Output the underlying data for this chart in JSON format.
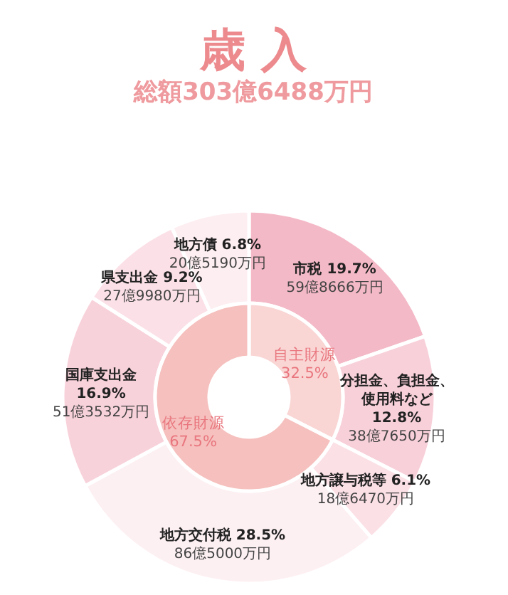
{
  "chart_data": [
    {
      "type": "donut",
      "title": "歳 入",
      "subtitle": "総額303億6488万円",
      "categories": [
        "市税",
        "分担金、負担金、使用料など",
        "地方譲与税等",
        "地方交付税",
        "国庫支出金",
        "県支出金",
        "地方債"
      ],
      "values": [
        19.7,
        12.8,
        6.1,
        28.5,
        16.9,
        9.2,
        6.8
      ],
      "value_labels": [
        "19.7%",
        "12.8%",
        "6.1%",
        "28.5%",
        "16.9%",
        "9.2%",
        "6.8%"
      ],
      "annotations": [
        "59億8666万円",
        "38億7650万円",
        "18億6470万円",
        "86億5000万円",
        "51億3532万円",
        "27億9980万円",
        "20億5190万円"
      ],
      "colors": [
        "#f4b9c7",
        "#f8d0da",
        "#fbe0e6",
        "#fdf0f3",
        "#f8d2db",
        "#fbe1e7",
        "#fdeef1"
      ]
    },
    {
      "type": "donut",
      "categories": [
        "自主財源",
        "依存財源"
      ],
      "values": [
        32.5,
        67.5
      ],
      "value_labels": [
        "32.5%",
        "67.5%"
      ],
      "colors": [
        "#f9d5d4",
        "#f5c0be"
      ]
    }
  ]
}
